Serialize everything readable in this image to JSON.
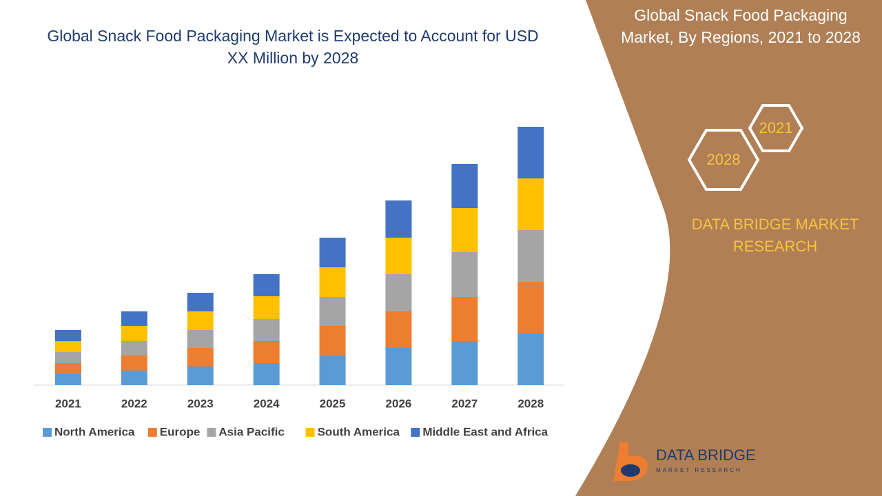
{
  "chart_data": {
    "type": "stacked_bar",
    "title": "Global Snack Food Packaging Market is Expected to Account for USD XX Million by 2028",
    "categories": [
      "2021",
      "2022",
      "2023",
      "2024",
      "2025",
      "2026",
      "2027",
      "2028"
    ],
    "series": [
      {
        "name": "North America",
        "color": "#5b9bd5",
        "values": [
          16,
          21,
          27,
          32,
          43,
          54,
          64,
          75
        ]
      },
      {
        "name": "Europe",
        "color": "#ed7d31",
        "values": [
          16,
          22,
          27,
          32,
          43,
          53,
          64,
          75
        ]
      },
      {
        "name": "Asia Pacific",
        "color": "#a5a5a5",
        "values": [
          16,
          21,
          26,
          32,
          42,
          54,
          65,
          75
        ]
      },
      {
        "name": "South America",
        "color": "#ffc000",
        "values": [
          16,
          22,
          27,
          33,
          43,
          53,
          64,
          75
        ]
      },
      {
        "name": "Middle East and Africa",
        "color": "#4472c4",
        "values": [
          16,
          21,
          27,
          32,
          43,
          54,
          64,
          75
        ]
      }
    ],
    "legend": "bottom"
  },
  "side_panel": {
    "title": "Global Snack Food Packaging Market, By Regions, 2021 to 2028",
    "hexagons": [
      "2021",
      "2028"
    ],
    "brand": "DATA BRIDGE MARKET RESEARCH",
    "logo_name": "DATA BRIDGE",
    "logo_tagline": "MARKET RESEARCH"
  }
}
